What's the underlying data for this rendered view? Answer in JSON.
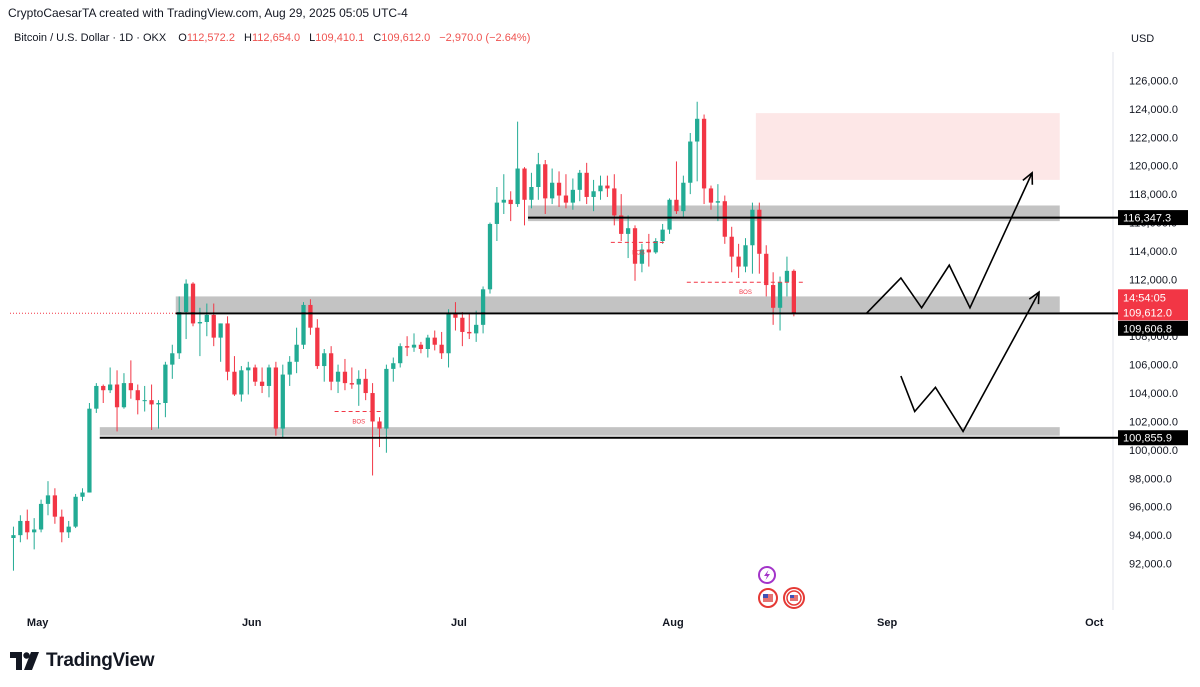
{
  "header": {
    "credit": "CryptoCaesarTA created with TradingView.com, Aug 29, 2025 05:05 UTC-4",
    "symbol": "Bitcoin / U.S. Dollar · 1D · OKX",
    "open_label": "O",
    "open": "112,572.2",
    "high_label": "H",
    "high": "112,654.0",
    "low_label": "L",
    "low": "109,410.1",
    "close_label": "C",
    "close": "109,612.0",
    "change": "−2,970.0 (−2.64%)",
    "currency": "USD"
  },
  "brand": {
    "name": "TradingView",
    "icon": "tradingview-logo-icon"
  },
  "colors": {
    "up": "#22ab94",
    "down": "#f23645",
    "zone": "#bdbdbd",
    "supply": "#fde3e3",
    "text": "#131722"
  },
  "chart_data": {
    "type": "candlestick",
    "yaxis": {
      "min": 90000,
      "max": 128000,
      "ticks": [
        "126,000.0",
        "124,000.0",
        "122,000.0",
        "120,000.0",
        "118,000.0",
        "116,000.0",
        "114,000.0",
        "112,000.0",
        "110,000.0",
        "108,000.0",
        "106,000.0",
        "104,000.0",
        "102,000.0",
        "100,000.0",
        "98,000.0",
        "96,000.0",
        "94,000.0",
        "92,000.0"
      ],
      "tick_values": [
        126000,
        124000,
        122000,
        120000,
        118000,
        116000,
        114000,
        112000,
        110000,
        108000,
        106000,
        104000,
        102000,
        100000,
        98000,
        96000,
        94000,
        92000
      ]
    },
    "xaxis": {
      "start": "2025-04-27",
      "end": "2025-10-04",
      "labels": [
        {
          "text": "May",
          "date": "2025-05-01"
        },
        {
          "text": "Jun",
          "date": "2025-06-01"
        },
        {
          "text": "Jul",
          "date": "2025-07-01"
        },
        {
          "text": "Aug",
          "date": "2025-08-01"
        },
        {
          "text": "Sep",
          "date": "2025-09-01"
        },
        {
          "text": "Oct",
          "date": "2025-10-01"
        }
      ]
    },
    "series": [
      {
        "start_date": "2025-04-27",
        "ohlc": [
          [
            93800,
            94600,
            91500,
            94000
          ],
          [
            94000,
            95400,
            93500,
            95000
          ],
          [
            95000,
            95800,
            93700,
            94200
          ],
          [
            94200,
            95200,
            93000,
            94400
          ],
          [
            94400,
            96500,
            94200,
            96200
          ],
          [
            96200,
            97800,
            95400,
            96800
          ],
          [
            96800,
            97300,
            94800,
            95300
          ],
          [
            95300,
            95800,
            93500,
            94200
          ],
          [
            94200,
            95000,
            93800,
            94600
          ],
          [
            94600,
            96900,
            94500,
            96700
          ],
          [
            96700,
            97300,
            96400,
            97000
          ],
          [
            97000,
            103300,
            97000,
            102900
          ],
          [
            102900,
            104700,
            102600,
            104500
          ],
          [
            104500,
            104600,
            103300,
            104200
          ],
          [
            104200,
            105800,
            104000,
            104600
          ],
          [
            104600,
            105600,
            101300,
            103000
          ],
          [
            103000,
            105400,
            102900,
            104700
          ],
          [
            104700,
            106300,
            103600,
            104200
          ],
          [
            104200,
            104600,
            102500,
            103500
          ],
          [
            103500,
            104500,
            102700,
            103500
          ],
          [
            103500,
            104600,
            101400,
            103200
          ],
          [
            103200,
            103500,
            101500,
            103300
          ],
          [
            103300,
            106200,
            102300,
            106000
          ],
          [
            106000,
            107400,
            105000,
            106800
          ],
          [
            106800,
            110800,
            106400,
            109700
          ],
          [
            109700,
            112000,
            107800,
            111700
          ],
          [
            111700,
            111800,
            108700,
            108900
          ],
          [
            108900,
            110000,
            106600,
            109000
          ],
          [
            109000,
            110300,
            108000,
            109500
          ],
          [
            109500,
            110300,
            107300,
            107900
          ],
          [
            107900,
            108900,
            106200,
            108900
          ],
          [
            108900,
            109400,
            104900,
            105500
          ],
          [
            105500,
            106600,
            103800,
            103900
          ],
          [
            103900,
            105900,
            103400,
            105600
          ],
          [
            105600,
            106200,
            103900,
            105800
          ],
          [
            105800,
            106000,
            104500,
            104800
          ],
          [
            104800,
            105800,
            104000,
            104500
          ],
          [
            104500,
            106000,
            103700,
            105800
          ],
          [
            105800,
            106200,
            101000,
            101500
          ],
          [
            101500,
            106000,
            100800,
            105300
          ],
          [
            105300,
            106600,
            104500,
            106200
          ],
          [
            106200,
            108600,
            105400,
            107400
          ],
          [
            107400,
            110400,
            107100,
            110200
          ],
          [
            110200,
            110600,
            108100,
            108600
          ],
          [
            108600,
            109200,
            105700,
            105900
          ],
          [
            105900,
            107100,
            104800,
            106800
          ],
          [
            106800,
            107300,
            104200,
            104800
          ],
          [
            104800,
            106000,
            104000,
            105500
          ],
          [
            105500,
            106400,
            104200,
            104700
          ],
          [
            104700,
            105800,
            104300,
            104600
          ],
          [
            104600,
            105600,
            103100,
            105000
          ],
          [
            105000,
            105700,
            103500,
            104000
          ],
          [
            104000,
            104700,
            98200,
            102000
          ],
          [
            102000,
            102300,
            100200,
            101500
          ],
          [
            101500,
            106000,
            99800,
            105700
          ],
          [
            105700,
            106500,
            104800,
            106100
          ],
          [
            106100,
            107500,
            105800,
            107300
          ],
          [
            107300,
            108000,
            106600,
            107200
          ],
          [
            107200,
            108200,
            106900,
            107400
          ],
          [
            107400,
            107600,
            106800,
            107100
          ],
          [
            107100,
            108100,
            106500,
            107900
          ],
          [
            107900,
            108400,
            107000,
            107400
          ],
          [
            107400,
            108300,
            106400,
            106800
          ],
          [
            106800,
            109900,
            105800,
            109600
          ],
          [
            109600,
            110400,
            108400,
            109300
          ],
          [
            109300,
            109700,
            107300,
            108300
          ],
          [
            108300,
            109600,
            107800,
            108200
          ],
          [
            108200,
            109800,
            107600,
            108800
          ],
          [
            108800,
            111500,
            108200,
            111300
          ],
          [
            111300,
            116000,
            111000,
            115900
          ],
          [
            115900,
            118500,
            114700,
            117400
          ],
          [
            117400,
            119400,
            116600,
            117600
          ],
          [
            117600,
            118200,
            116100,
            117300
          ],
          [
            117300,
            123100,
            117100,
            119800
          ],
          [
            119800,
            119900,
            115800,
            117600
          ],
          [
            117600,
            119500,
            117000,
            118500
          ],
          [
            118500,
            120900,
            117600,
            120100
          ],
          [
            120100,
            120400,
            116600,
            117700
          ],
          [
            117700,
            119800,
            117300,
            118800
          ],
          [
            118800,
            119600,
            117100,
            117900
          ],
          [
            117900,
            119400,
            117000,
            117400
          ],
          [
            117400,
            119100,
            116900,
            118300
          ],
          [
            118300,
            119700,
            117500,
            119500
          ],
          [
            119500,
            120200,
            117300,
            117800
          ],
          [
            117800,
            119000,
            116800,
            118200
          ],
          [
            118200,
            119300,
            117600,
            118600
          ],
          [
            118600,
            119300,
            117800,
            118400
          ],
          [
            118400,
            119400,
            115800,
            116500
          ],
          [
            116500,
            118000,
            114700,
            115200
          ],
          [
            115200,
            116500,
            113500,
            115600
          ],
          [
            115600,
            115800,
            111900,
            113100
          ],
          [
            113100,
            114500,
            112500,
            114100
          ],
          [
            114100,
            115200,
            112900,
            113900
          ],
          [
            113900,
            114900,
            113800,
            114700
          ],
          [
            114700,
            115900,
            114500,
            115500
          ],
          [
            115500,
            117700,
            115200,
            117600
          ],
          [
            117600,
            120300,
            116600,
            116800
          ],
          [
            116800,
            119300,
            116400,
            118800
          ],
          [
            118800,
            122300,
            118000,
            121700
          ],
          [
            121700,
            124500,
            118900,
            123300
          ],
          [
            123300,
            123600,
            117300,
            118400
          ],
          [
            118400,
            118600,
            116900,
            117400
          ],
          [
            117400,
            118700,
            116100,
            117500
          ],
          [
            117500,
            117900,
            114500,
            115000
          ],
          [
            115000,
            115700,
            112500,
            113600
          ],
          [
            113600,
            114500,
            112100,
            112900
          ],
          [
            112900,
            114900,
            112500,
            114400
          ],
          [
            114400,
            117400,
            112400,
            116900
          ],
          [
            116900,
            117400,
            112400,
            113800
          ],
          [
            113800,
            114400,
            110800,
            111600
          ],
          [
            111600,
            112500,
            108800,
            110000
          ],
          [
            110000,
            112200,
            108400,
            111800
          ],
          [
            111800,
            113600,
            110800,
            112600
          ],
          [
            112600,
            112700,
            109400,
            109600
          ]
        ]
      }
    ],
    "zones": [
      {
        "label": "supply zone",
        "from": "2025-08-13",
        "to": "2025-09-26",
        "low": 119000,
        "high": 123700
      },
      {
        "label": "resistance zone",
        "from": "2025-07-11",
        "to": "2025-09-26",
        "low": 116100,
        "high": 117200
      },
      {
        "label": "support zone",
        "from": "2025-05-21",
        "to": "2025-09-26",
        "low": 109700,
        "high": 110800
      },
      {
        "label": "demand zone",
        "from": "2025-05-10",
        "to": "2025-09-26",
        "low": 101000,
        "high": 101600
      }
    ],
    "hlines": [
      {
        "price": 116347.3,
        "label": "116,347.3",
        "from": "2025-07-11"
      },
      {
        "price": 109606.8,
        "label": "109,606.8",
        "from": "2025-05-21"
      },
      {
        "price": 100855.9,
        "label": "100,855.9",
        "from": "2025-05-10"
      }
    ],
    "price_tag": {
      "price": 109612.0,
      "countdown": "14:54:05",
      "label": "109,612.0"
    },
    "bos": [
      {
        "label": "BOS",
        "from": "2025-06-13",
        "to": "2025-06-20",
        "price": 102700
      },
      {
        "label": "BOS",
        "from": "2025-07-23",
        "to": "2025-07-31",
        "price": 114600
      },
      {
        "label": "BOS",
        "from": "2025-08-03",
        "to": "2025-08-20",
        "price": 111800
      }
    ],
    "paths": [
      {
        "name": "bullish-scenario",
        "points": [
          [
            "2025-08-29",
            109600
          ],
          [
            "2025-09-03",
            112100
          ],
          [
            "2025-09-06",
            110000
          ],
          [
            "2025-09-10",
            113000
          ],
          [
            "2025-09-13",
            110000
          ],
          [
            "2025-09-22",
            119500
          ]
        ]
      },
      {
        "name": "bearish-scenario",
        "points": [
          [
            "2025-09-03",
            105200
          ],
          [
            "2025-09-05",
            102700
          ],
          [
            "2025-09-08",
            104400
          ],
          [
            "2025-09-12",
            101300
          ],
          [
            "2025-09-23",
            111100
          ]
        ]
      }
    ]
  }
}
